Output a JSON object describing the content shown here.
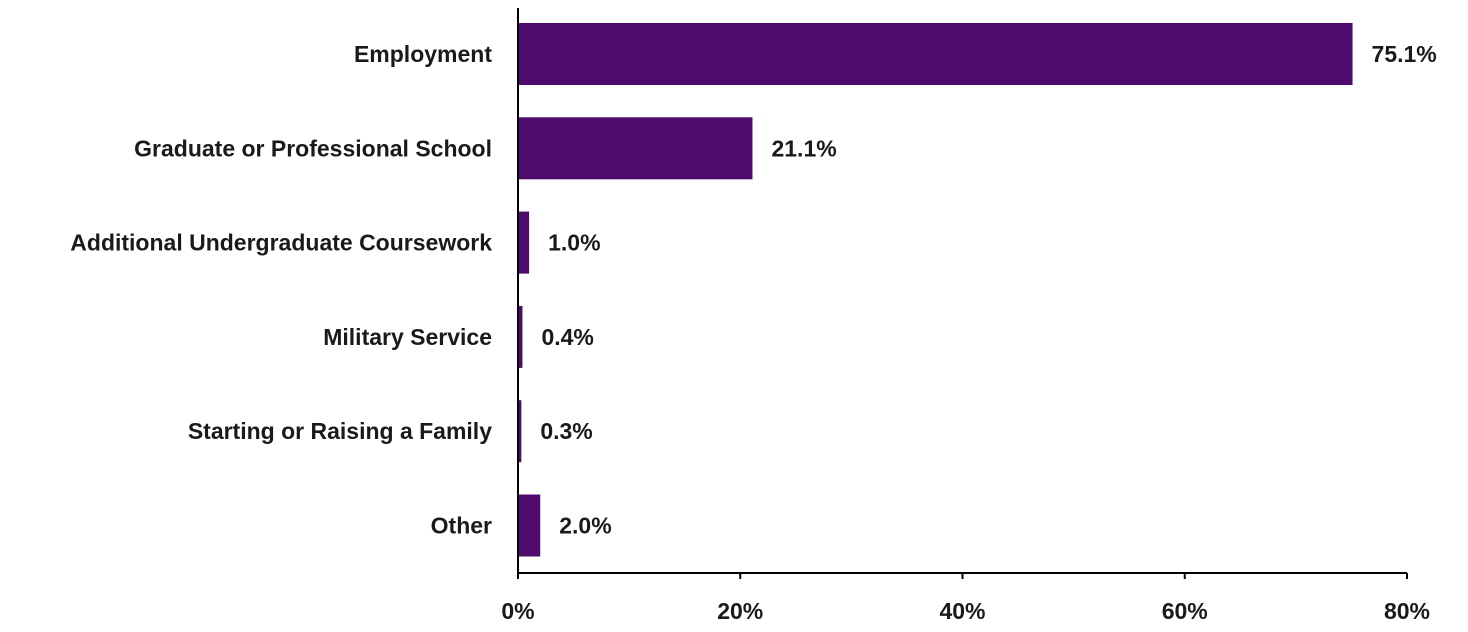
{
  "chart_data": {
    "type": "bar",
    "orientation": "horizontal",
    "title": "",
    "xlabel": "",
    "ylabel": "",
    "categories": [
      "Employment",
      "Graduate or Professional School",
      "Additional Undergraduate Coursework",
      "Military Service",
      "Starting or Raising a Family",
      "Other"
    ],
    "values": [
      75.1,
      21.1,
      1.0,
      0.4,
      0.3,
      2.0
    ],
    "data_labels": [
      "75.1%",
      "21.1%",
      "1.0%",
      "0.4%",
      "0.3%",
      "2.0%"
    ],
    "xlim": [
      0,
      80
    ],
    "x_ticks": [
      0,
      20,
      40,
      60,
      80
    ],
    "x_tick_labels": [
      "0%",
      "20%",
      "40%",
      "60%",
      "80%"
    ],
    "grid": false,
    "legend": "none",
    "colors": {
      "bar": "#4F0A6E",
      "axis": "#000000",
      "text": "#1a1a1a"
    }
  }
}
